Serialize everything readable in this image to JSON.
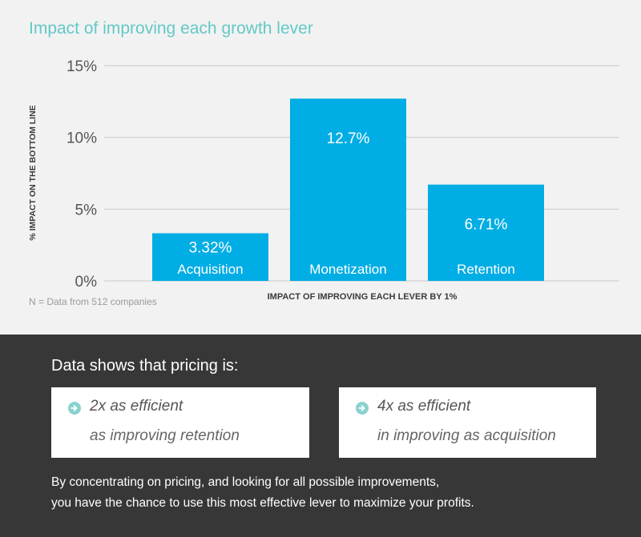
{
  "chart_data": {
    "type": "bar",
    "title": "Impact of improving each growth lever",
    "categories": [
      "Acquisition",
      "Monetization",
      "Retention"
    ],
    "values": [
      3.32,
      12.7,
      6.71
    ],
    "value_labels": [
      "3.32%",
      "12.7%",
      "6.71%"
    ],
    "ylabel": "% IMPACT ON THE BOTTOM LINE",
    "xlabel": "IMPACT OF IMPROVING EACH LEVER BY 1%",
    "ylim": [
      0,
      15
    ],
    "yticks": [
      0,
      5,
      10,
      15
    ],
    "ytick_labels": [
      "0%",
      "5%",
      "10%",
      "15%"
    ],
    "grid": true,
    "bar_color": "#00ade4",
    "grid_color": "#c8c8c8"
  },
  "footnote": "N = Data from 512 companies",
  "summary": {
    "heading": "Data shows that pricing is:",
    "cards": [
      {
        "icon": "arrow-right-circle-icon",
        "stat": "2x as efficient",
        "comparison": "as improving retention"
      },
      {
        "icon": "arrow-right-circle-icon",
        "stat": "4x as efficient",
        "comparison": "in improving as acquisition"
      }
    ],
    "conclusion_lines": [
      "By concentrating on pricing, and looking for all possible improvements,",
      "you have the chance to use this most effective lever to maximize your profits."
    ],
    "accent_color": "#8ad1cf"
  }
}
